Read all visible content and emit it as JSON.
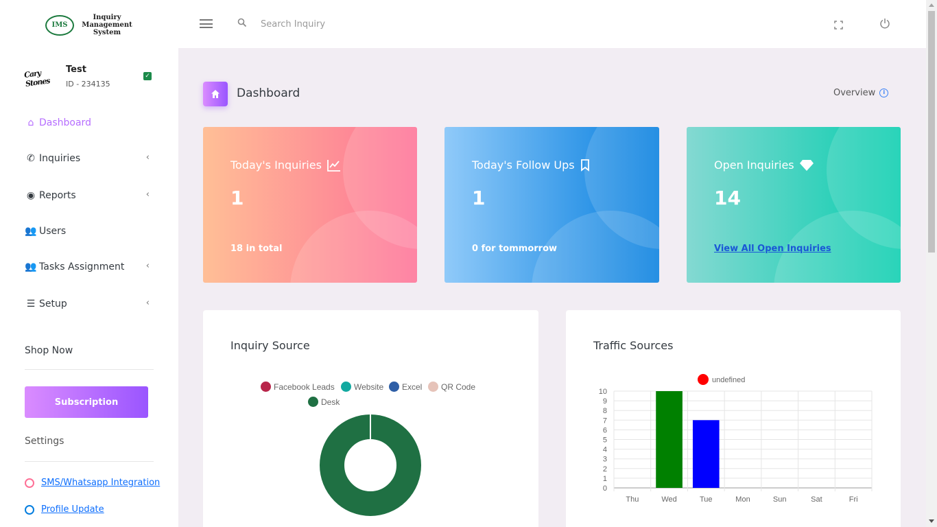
{
  "app": {
    "logo_badge": "IMS",
    "logo_text": "Inquiry Management System"
  },
  "profile": {
    "avatar_text": "Cary Stones",
    "name": "Test",
    "id": "ID - 234135"
  },
  "sidebar": {
    "items": [
      {
        "label": "Dashboard",
        "icon": "home-icon",
        "active": true
      },
      {
        "label": "Inquiries",
        "icon": "phone-icon",
        "has_submenu": true
      },
      {
        "label": "Reports",
        "icon": "eye-icon",
        "has_submenu": true
      },
      {
        "label": "Users",
        "icon": "users-icon"
      },
      {
        "label": "Tasks Assignment",
        "icon": "users-icon",
        "has_submenu": true
      },
      {
        "label": "Setup",
        "icon": "sliders-icon",
        "has_submenu": true
      }
    ],
    "shop_now": "Shop Now",
    "subscription": "Subscription",
    "settings_title": "Settings",
    "settings_links": [
      {
        "label": "SMS/Whatsapp Integration",
        "ring_color": "#fe7096"
      },
      {
        "label": "Profile Update",
        "ring_color": "#047edf"
      }
    ]
  },
  "topbar": {
    "search_placeholder": "Search Inquiry"
  },
  "page": {
    "title": "Dashboard",
    "overview": "Overview"
  },
  "cards": [
    {
      "title": "Today's Inquiries",
      "icon": "chart-line-icon",
      "value": "1",
      "footer": "18 in total"
    },
    {
      "title": "Today's Follow Ups",
      "icon": "bookmark-icon",
      "value": "1",
      "footer": "0 for tommorrow"
    },
    {
      "title": "Open Inquiries",
      "icon": "diamond-icon",
      "value": "14",
      "footer": "View All Open Inquiries"
    }
  ],
  "inquiry_source": {
    "title": "Inquiry Source"
  },
  "traffic_sources": {
    "title": "Traffic Sources"
  },
  "colors": {
    "accent": "#b66dff",
    "facebook": "#b8254a",
    "website": "#12a9a0",
    "excel": "#2e5ea6",
    "qr": "#e6c3b9",
    "desk": "#1f7043"
  },
  "chart_data": [
    {
      "type": "pie",
      "title": "Inquiry Source",
      "donut": true,
      "labels": [
        "Facebook Leads",
        "Website",
        "Excel",
        "QR Code",
        "Desk"
      ],
      "values": [
        0,
        0,
        0,
        0,
        100
      ],
      "colors": [
        "#b8254a",
        "#12a9a0",
        "#2e5ea6",
        "#e6c3b9",
        "#1f7043"
      ],
      "legend": "top"
    },
    {
      "type": "bar",
      "title": "Traffic Sources",
      "categories": [
        "Thu",
        "Wed",
        "Tue",
        "Mon",
        "Sun",
        "Sat",
        "Fri"
      ],
      "series": [
        {
          "name": "undefined",
          "values": [
            0,
            10,
            7,
            0,
            0,
            0,
            0
          ]
        }
      ],
      "bar_colors": [
        "#ff0000",
        "#008000",
        "#0000ff",
        "#ff0000",
        "#ff0000",
        "#ff0000",
        "#ff0000"
      ],
      "legend_color": "#ff0000",
      "ylim": [
        0,
        10
      ],
      "yticks": [
        0,
        1,
        2,
        3,
        4,
        5,
        6,
        7,
        8,
        9,
        10
      ],
      "grid": true,
      "legend": "top"
    }
  ]
}
